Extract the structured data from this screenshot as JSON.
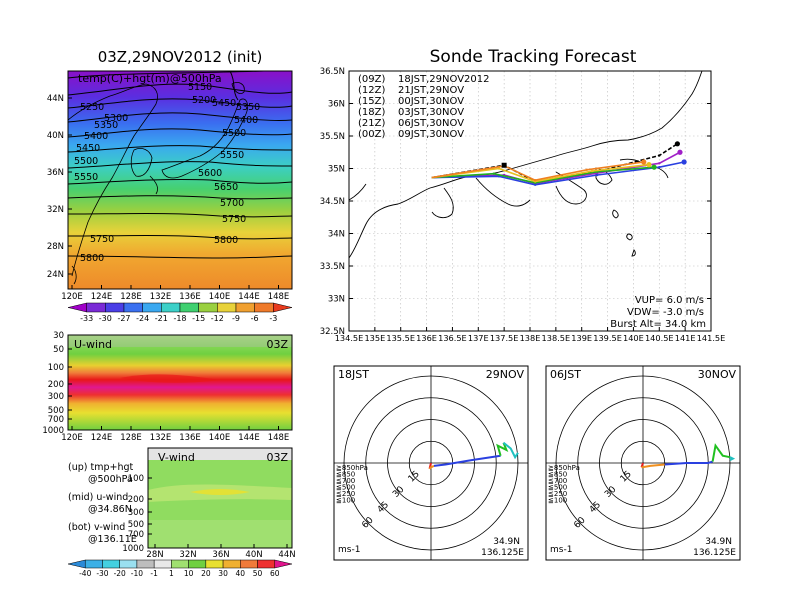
{
  "left_panel": {
    "title": "03Z,29NOV2012 (init)",
    "map_label": "temp(C)+hgt(m)@500hPa",
    "lat_ticks": [
      "44N",
      "40N",
      "36N",
      "32N",
      "28N",
      "24N"
    ],
    "lon_ticks": [
      "120E",
      "124E",
      "128E",
      "132E",
      "136E",
      "140E",
      "144E",
      "148E"
    ],
    "contour_labels": [
      "5150",
      "5200",
      "5250",
      "5300",
      "5350",
      "5350",
      "5400",
      "5400",
      "5450",
      "5450",
      "5500",
      "5500",
      "5550",
      "5550",
      "5600",
      "5650",
      "5700",
      "5750",
      "5750",
      "5800",
      "5800"
    ],
    "temp_colorbar": [
      "-33",
      "-30",
      "-27",
      "-24",
      "-21",
      "-18",
      "-15",
      "-12",
      "-9",
      "-6",
      "-3"
    ],
    "temp_colors": [
      "#a000c8",
      "#7a2ad6",
      "#4a3ee6",
      "#3a70f0",
      "#3aa8f0",
      "#3cd0c8",
      "#40d070",
      "#9ad040",
      "#e8d23a",
      "#f0a030",
      "#ef7a2a",
      "#e83a1e"
    ],
    "uwind": {
      "label": "U-wind",
      "time": "03Z",
      "p_ticks": [
        "30",
        "50",
        "100",
        "200",
        "300",
        "500",
        "700",
        "1000"
      ],
      "lon_ticks": [
        "120E",
        "124E",
        "128E",
        "132E",
        "136E",
        "140E",
        "144E",
        "148E"
      ]
    },
    "vwind": {
      "label": "V-wind",
      "time": "03Z",
      "p_ticks": [
        "100",
        "200",
        "300",
        "500",
        "700",
        "1000"
      ],
      "lat_ticks": [
        "28N",
        "32N",
        "36N",
        "40N",
        "44N"
      ]
    },
    "legend_lines": [
      "(up) tmp+hgt",
      "@500hPa",
      "(mid) u-wind",
      "@34.86N",
      "(bot) v-wind",
      "@136.11E"
    ],
    "wind_colorbar": [
      "-40",
      "-30",
      "-20",
      "-10",
      "-1",
      "1",
      "10",
      "20",
      "30",
      "40",
      "50",
      "60"
    ],
    "wind_colors": [
      "#2a8ad8",
      "#3cb0e6",
      "#44d0e0",
      "#9ae0f0",
      "#bdbdbd",
      "#e8e8e8",
      "#a0e070",
      "#70d040",
      "#e8e030",
      "#f0b030",
      "#f07a3a",
      "#ee3030",
      "#e0148c"
    ]
  },
  "tracking": {
    "title": "Sonde Tracking Forecast",
    "lat_ticks": [
      "36.5N",
      "36N",
      "35.5N",
      "35N",
      "34.5N",
      "34N",
      "33.5N",
      "33N",
      "32.5N"
    ],
    "lon_ticks": [
      "134.5E",
      "135E",
      "135.5E",
      "136E",
      "136.5E",
      "137E",
      "137.5E",
      "138E",
      "138.5E",
      "139E",
      "139.5E",
      "140E",
      "140.5E",
      "141E",
      "141.5E"
    ],
    "legend": [
      {
        "tag": "(09Z)",
        "text": "18JST,29NOV2012",
        "color": "#000000"
      },
      {
        "tag": "(12Z)",
        "text": "21JST,29NOV",
        "color": "#a020c8"
      },
      {
        "tag": "(15Z)",
        "text": "00JST,30NOV",
        "color": "#2a40e0"
      },
      {
        "tag": "(18Z)",
        "text": "03JST,30NOV",
        "color": "#20b020"
      },
      {
        "tag": "(21Z)",
        "text": "06JST,30NOV",
        "color": "#e8c020"
      },
      {
        "tag": "(00Z)",
        "text": "09JST,30NOV",
        "color": "#f08020"
      }
    ],
    "params": [
      "VUP= 6.0 m/s",
      "VDW= -3.0 m/s",
      "Burst Alt= 34.0 km"
    ]
  },
  "hodographs": [
    {
      "time": "18JST",
      "date": "29NOV",
      "units": "ms-1",
      "lat": "34.9N",
      "lon": "136.125E"
    },
    {
      "time": "06JST",
      "date": "30NOV",
      "units": "ms-1",
      "lat": "34.9N",
      "lon": "136.125E"
    }
  ],
  "hodo_rings": [
    "15",
    "30",
    "45",
    "60"
  ],
  "hodo_levels": [
    {
      "label": "≧850hPa",
      "color": "#e82020"
    },
    {
      "label": "≦850",
      "color": "#f09020"
    },
    {
      "label": "≦700",
      "color": "#e8d020"
    },
    {
      "label": "≦500",
      "color": "#20c020"
    },
    {
      "label": "≦250",
      "color": "#20c0c0"
    },
    {
      "label": "≦100",
      "color": "#2a40e0"
    }
  ],
  "chart_data": [
    {
      "type": "line",
      "title": "Sonde Tracking Forecast",
      "xlim": [
        134.5,
        141.5
      ],
      "ylim": [
        32.5,
        36.5
      ],
      "series": [
        {
          "name": "18JST,29NOV2012",
          "color": "#000000",
          "x": [
            136.1,
            137.5,
            138.1,
            139.3,
            140.5,
            140.85
          ],
          "y": [
            34.86,
            35.05,
            34.8,
            34.95,
            35.2,
            35.38
          ]
        },
        {
          "name": "21JST,29NOV",
          "color": "#a020c8",
          "x": [
            136.1,
            137.5,
            138.1,
            139.3,
            140.5,
            140.9
          ],
          "y": [
            34.86,
            34.9,
            34.77,
            34.93,
            35.08,
            35.25
          ]
        },
        {
          "name": "00JST,30NOV",
          "color": "#2a40e0",
          "x": [
            136.1,
            137.4,
            138.1,
            139.3,
            140.5,
            140.98
          ],
          "y": [
            34.86,
            34.88,
            34.75,
            34.9,
            35.02,
            35.1
          ]
        },
        {
          "name": "03JST,30NOV",
          "color": "#20b020",
          "x": [
            136.1,
            137.3,
            138.1,
            139.3,
            140.4
          ],
          "y": [
            34.86,
            34.92,
            34.78,
            34.95,
            35.02
          ]
        },
        {
          "name": "06JST,30NOV",
          "color": "#e8c020",
          "x": [
            136.1,
            137.4,
            138.1,
            139.2,
            140.3
          ],
          "y": [
            34.86,
            35.0,
            34.8,
            34.96,
            35.06
          ]
        },
        {
          "name": "09JST,30NOV",
          "color": "#f08020",
          "x": [
            136.1,
            137.5,
            138.1,
            139.1,
            140.2
          ],
          "y": [
            34.86,
            35.04,
            34.82,
            34.98,
            35.1
          ]
        }
      ]
    },
    {
      "type": "line",
      "title": "18JST 29NOV",
      "units": "ms-1",
      "rings": [
        15,
        30,
        45,
        60
      ],
      "series": [
        {
          "name": "≧850hPa",
          "color": "#e82020",
          "u": [
            0,
            -1
          ],
          "v": [
            0,
            -4
          ]
        },
        {
          "name": "≦850",
          "color": "#f09020",
          "u": [
            -1,
            0,
            2
          ],
          "v": [
            -4,
            -3,
            -2
          ]
        },
        {
          "name": "≦500",
          "color": "#2a40e0",
          "u": [
            2,
            10,
            28,
            48
          ],
          "v": [
            -2,
            -1,
            2,
            5
          ]
        },
        {
          "name": "≦250",
          "color": "#20c020",
          "u": [
            48,
            46,
            52,
            50
          ],
          "v": [
            5,
            12,
            9,
            14
          ]
        },
        {
          "name": "≦100",
          "color": "#20c0c0",
          "u": [
            50,
            55,
            58,
            60
          ],
          "v": [
            14,
            10,
            4,
            7
          ]
        }
      ]
    },
    {
      "type": "line",
      "title": "06JST 30NOV",
      "units": "ms-1",
      "rings": [
        15,
        30,
        45,
        60
      ],
      "series": [
        {
          "name": "≧850hPa",
          "color": "#e82020",
          "u": [
            0,
            -1
          ],
          "v": [
            0,
            -3
          ]
        },
        {
          "name": "≦850",
          "color": "#f09020",
          "u": [
            -1,
            5,
            15
          ],
          "v": [
            -3,
            -2,
            -1
          ]
        },
        {
          "name": "≦500",
          "color": "#2a40e0",
          "u": [
            15,
            30,
            45,
            48
          ],
          "v": [
            -1,
            0,
            0,
            1
          ]
        },
        {
          "name": "≦250",
          "color": "#20c020",
          "u": [
            48,
            50,
            55,
            60
          ],
          "v": [
            1,
            12,
            5,
            4
          ]
        },
        {
          "name": "≦100",
          "color": "#20c0c0",
          "u": [
            60,
            62,
            60
          ],
          "v": [
            4,
            3,
            2
          ]
        }
      ]
    }
  ]
}
